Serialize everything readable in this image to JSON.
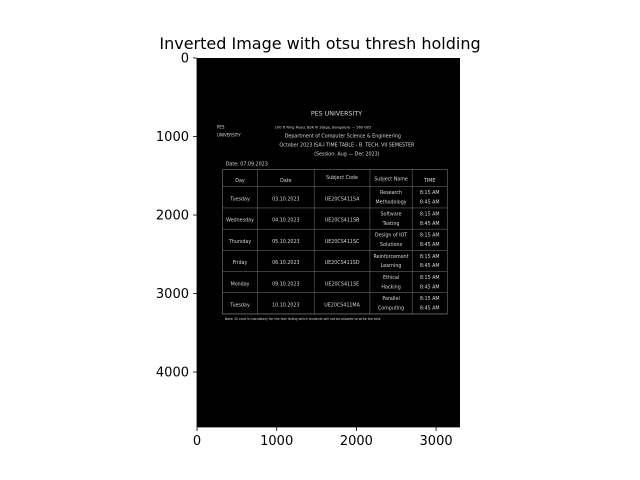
{
  "chart_data": {
    "type": "image",
    "title": "Inverted Image with otsu thresh holding",
    "xlim": [
      0,
      3300
    ],
    "ylim": [
      4700,
      0
    ],
    "x_ticks": [
      0,
      1000,
      2000,
      3000
    ],
    "y_ticks": [
      0,
      1000,
      2000,
      3000,
      4000
    ],
    "grid": false,
    "image_colors": {
      "background": "#000000",
      "foreground": "#d8d8d8"
    },
    "document": {
      "university": "PES UNIVERSITY",
      "logo_text": [
        "PES",
        "UNIVERSITY"
      ],
      "address": "100 ft Ring Road, BSK III Stage, Bangalore — 560 085",
      "department": "Department of Computer Science & Engineering",
      "timetable_title": "October 2023 ISA-I TIME TABLE - B. TECH, VII SEMESTER",
      "session": "(Session: Aug — Dec 2023)",
      "date": "Date: 07.09.2023",
      "table_headers": [
        "Day",
        "Date",
        "Subject Code",
        "Subject Name",
        "TIME"
      ],
      "rows": [
        {
          "day": "Tuesday",
          "date": "03.10.2023",
          "code": "UE20CS411SA",
          "name": [
            "Research",
            "Methodology"
          ],
          "time": [
            "8:15 AM",
            "8:45 AM"
          ]
        },
        {
          "day": "Wednesday",
          "date": "04.10.2023",
          "code": "UE20CS411SB",
          "name": [
            "Software",
            "Testing"
          ],
          "time": [
            "8:15 AM",
            "8:45 AM"
          ]
        },
        {
          "day": "Thursday",
          "date": "05.10.2023",
          "code": "UE20CS411SC",
          "name": [
            "Design of IOT",
            "Solutions"
          ],
          "time": [
            "8:15 AM",
            "8:45 AM"
          ]
        },
        {
          "day": "Friday",
          "date": "06.10.2023",
          "code": "UE20CS411SD",
          "name": [
            "Reinforcement",
            "Learning"
          ],
          "time": [
            "8:15 AM",
            "8:45 AM"
          ]
        },
        {
          "day": "Monday",
          "date": "09.10.2023",
          "code": "UE20CS411SE",
          "name": [
            "Ethical",
            "Hacking"
          ],
          "time": [
            "8:15 AM",
            "8:45 AM"
          ]
        },
        {
          "day": "Tuesday",
          "date": "10.10.2023",
          "code": "UE20CS411MA",
          "name": [
            "Parallel",
            "Computing"
          ],
          "time": [
            "8:15 AM",
            "8:45 AM"
          ]
        }
      ],
      "note": "Note: ID card is mandatory for the test failing which students will not be allowed to write the test."
    }
  }
}
